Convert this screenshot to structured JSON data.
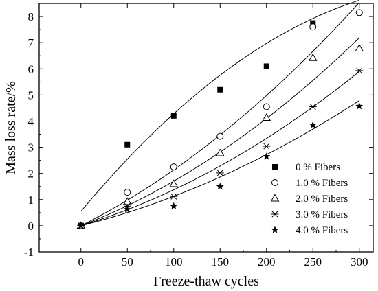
{
  "chart_data": {
    "type": "scatter",
    "title": "",
    "xlabel": "Freeze-thaw cycles",
    "ylabel": "Mass loss rate/%",
    "xlim": [
      -45,
      315
    ],
    "ylim": [
      -1,
      8.5
    ],
    "x_ticks": [
      0,
      50,
      100,
      150,
      200,
      250,
      300
    ],
    "y_ticks": [
      -1,
      0,
      1,
      2,
      3,
      4,
      5,
      6,
      7,
      8
    ],
    "x_tick_labels": [
      "0",
      "50",
      "100",
      "150",
      "200",
      "250",
      "300"
    ],
    "y_tick_labels": [
      "-1",
      "0",
      "1",
      "2",
      "3",
      "4",
      "5",
      "6",
      "7",
      "8"
    ],
    "grid": false,
    "legend_position": "bottom-right",
    "x": [
      0,
      50,
      100,
      150,
      200,
      250,
      300
    ],
    "series": [
      {
        "name": "0 % Fibers",
        "marker": "filled-square",
        "values": [
          0.0,
          3.1,
          4.2,
          5.2,
          6.1,
          7.75,
          null
        ],
        "fit": [
          0.55,
          0.0425,
          -5.2e-05
        ]
      },
      {
        "name": "1.0 % Fibers",
        "marker": "open-circle",
        "values": [
          0.0,
          1.28,
          2.25,
          3.42,
          4.55,
          7.6,
          8.15
        ],
        "fit": [
          0.0,
          0.0178,
          3.55e-05
        ]
      },
      {
        "name": "2.0 % Fibers",
        "marker": "open-triangle",
        "values": [
          0.0,
          0.92,
          1.6,
          2.78,
          4.13,
          6.42,
          6.78
        ],
        "fit": [
          0.0,
          0.0136,
          3.45e-05
        ]
      },
      {
        "name": "3.0 % Fibers",
        "marker": "asterisk",
        "values": [
          0.0,
          0.75,
          1.12,
          2.02,
          3.04,
          4.55,
          5.93
        ],
        "fit": [
          0.0,
          0.0108,
          2.95e-05
        ]
      },
      {
        "name": "4.0 % Fibers",
        "marker": "filled-star",
        "values": [
          0.0,
          0.62,
          0.75,
          1.5,
          2.65,
          3.85,
          4.57
        ],
        "fit": [
          0.0,
          0.0089,
          2.35e-05
        ]
      }
    ]
  }
}
